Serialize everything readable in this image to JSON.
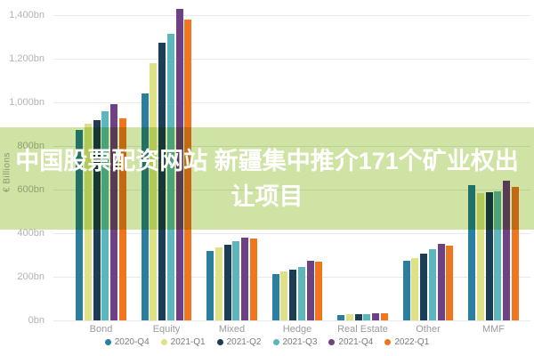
{
  "overlay": {
    "title_line1": "中国股票配资网站 新疆集中推介171个矿业权出",
    "title_line2": "让项目",
    "band_color": "#cfe3a4",
    "text_color": "#ffffff"
  },
  "chart_data": {
    "type": "bar",
    "title": "",
    "xlabel": "",
    "ylabel": "€ Billions",
    "categories": [
      "Bond",
      "Equity",
      "Mixed",
      "Hedge",
      "Real Estate",
      "Other",
      "MMF"
    ],
    "series": [
      {
        "name": "2020-Q4",
        "color": "#2a7f9e",
        "values": [
          875,
          1040,
          320,
          212,
          25,
          273,
          620
        ]
      },
      {
        "name": "2021-Q1",
        "color": "#dde287",
        "values": [
          900,
          1180,
          335,
          224,
          27,
          286,
          585
        ]
      },
      {
        "name": "2021-Q2",
        "color": "#1c3e55",
        "values": [
          920,
          1275,
          347,
          233,
          28,
          306,
          588
        ]
      },
      {
        "name": "2021-Q3",
        "color": "#5cb6bc",
        "values": [
          960,
          1315,
          363,
          245,
          30,
          326,
          590
        ]
      },
      {
        "name": "2021-Q4",
        "color": "#6d4183",
        "values": [
          990,
          1430,
          379,
          273,
          32,
          351,
          640
        ]
      },
      {
        "name": "2022-Q1",
        "color": "#f0761e",
        "values": [
          925,
          1380,
          375,
          269,
          32,
          343,
          612
        ]
      }
    ],
    "ylim": [
      0,
      1400
    ],
    "ytick_step": 200,
    "ytick_suffix": "bn",
    "grid": true,
    "legend_position": "bottom"
  }
}
